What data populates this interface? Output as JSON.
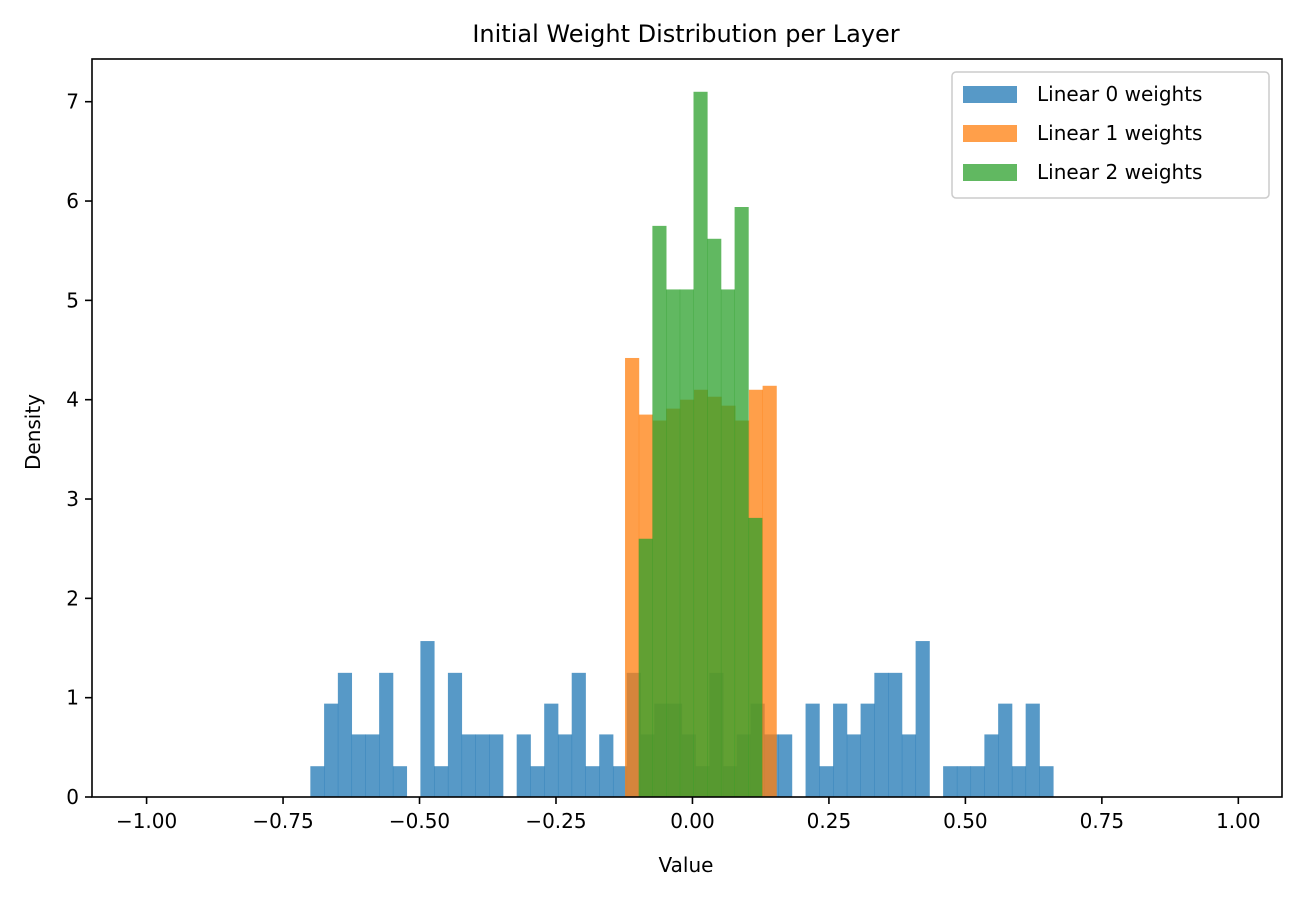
{
  "chart_data": {
    "type": "bar",
    "title": "Initial Weight Distribution per Layer",
    "xlabel": "Value",
    "ylabel": "Density",
    "xlim": [
      -1.1,
      1.08
    ],
    "ylim": [
      0,
      7.43
    ],
    "xticks": [
      -1.0,
      -0.75,
      -0.5,
      -0.25,
      0.0,
      0.25,
      0.5,
      0.75,
      1.0
    ],
    "xtick_labels": [
      "−1.00",
      "−0.75",
      "−0.50",
      "−0.25",
      "0.00",
      "0.25",
      "0.50",
      "0.75",
      "1.00"
    ],
    "yticks": [
      0,
      1,
      2,
      3,
      4,
      5,
      6,
      7
    ],
    "ytick_labels": [
      "0",
      "1",
      "2",
      "3",
      "4",
      "5",
      "6",
      "7"
    ],
    "grid": false,
    "legend_position": "top-right",
    "series": [
      {
        "name": "Linear 0 weights",
        "color": "#1f77b4",
        "opacity": 0.75,
        "bin_start": -0.7,
        "bin_width": 0.0252,
        "values": [
          0.31,
          0.94,
          1.25,
          0.63,
          0.63,
          1.25,
          0.31,
          0,
          1.57,
          0.31,
          1.25,
          0.63,
          0.63,
          0.63,
          0,
          0.63,
          0.31,
          0.94,
          0.63,
          1.25,
          0.31,
          0.63,
          0.31,
          1.25,
          0.63,
          0.94,
          0.94,
          0.63,
          0.31,
          1.25,
          0.31,
          0.63,
          0.94,
          0.63,
          0.63,
          0,
          0.94,
          0.31,
          0.94,
          0.63,
          0.94,
          1.25,
          1.25,
          0.63,
          1.57,
          0,
          0.31,
          0.31,
          0.31,
          0.63,
          0.94,
          0.31,
          0.94,
          0.31
        ]
      },
      {
        "name": "Linear 1 weights",
        "color": "#ff7f0e",
        "opacity": 0.75,
        "bin_start": -0.1235,
        "bin_width": 0.0252,
        "values": [
          4.42,
          3.85,
          3.79,
          3.91,
          4.0,
          4.1,
          4.03,
          3.94,
          3.79,
          4.1,
          4.14
        ]
      },
      {
        "name": "Linear 2 weights",
        "color": "#2ca02c",
        "opacity": 0.75,
        "bin_start": -0.0985,
        "bin_width": 0.0251,
        "values": [
          2.6,
          5.75,
          5.11,
          5.11,
          7.1,
          5.62,
          5.11,
          5.94,
          2.81
        ]
      }
    ]
  }
}
